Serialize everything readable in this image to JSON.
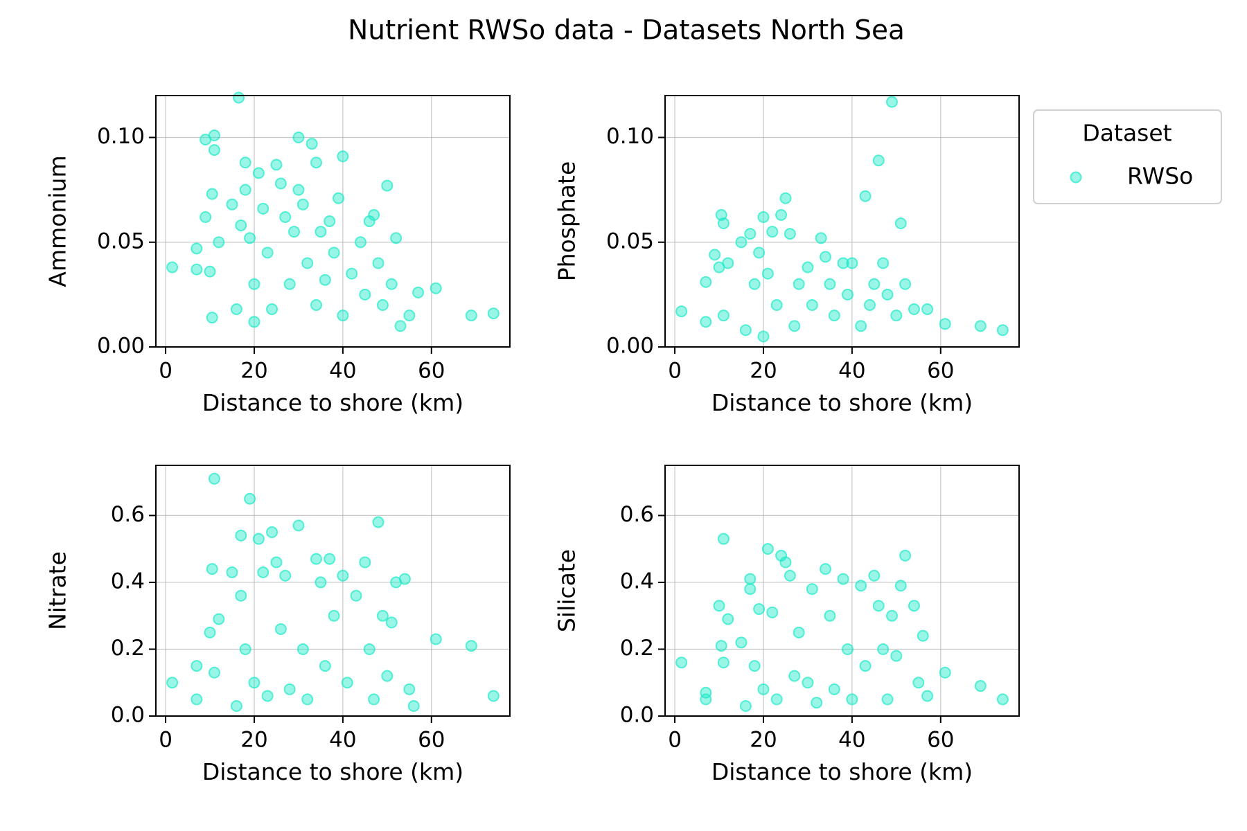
{
  "title": "Nutrient RWSo data - Datasets North Sea",
  "legend": {
    "title": "Dataset"
  },
  "chart_data": [
    {
      "type": "scatter",
      "xlabel": "Distance to shore (km)",
      "ylabel": "Ammonium",
      "grid": true,
      "xlim": [
        -2.2,
        77.7
      ],
      "ylim": [
        0,
        0.12
      ],
      "xticks": [
        0,
        20,
        40,
        60
      ],
      "yticks": [
        {
          "value": 0,
          "label": "0.00"
        },
        {
          "value": 0.05,
          "label": "0.05"
        },
        {
          "value": 0.1,
          "label": "0.10"
        }
      ],
      "x": [
        1.5,
        7,
        7,
        9,
        9,
        10,
        10.5,
        10.5,
        11,
        11,
        12,
        15,
        16,
        16.5,
        17,
        18,
        18,
        19,
        20,
        20,
        21,
        22,
        23,
        24,
        25,
        26,
        27,
        28,
        29,
        30,
        30,
        31,
        32,
        33,
        34,
        34,
        35,
        36,
        37,
        38,
        39,
        40,
        40,
        42,
        44,
        45,
        46,
        47,
        48,
        49,
        50,
        51,
        52,
        53,
        55,
        57,
        61,
        69,
        74
      ],
      "series": [
        {
          "name": "RWSo",
          "color": "#1de9c8",
          "values": [
            0.038,
            0.047,
            0.037,
            0.062,
            0.099,
            0.036,
            0.073,
            0.014,
            0.101,
            0.094,
            0.05,
            0.068,
            0.018,
            0.119,
            0.058,
            0.088,
            0.075,
            0.052,
            0.03,
            0.012,
            0.083,
            0.066,
            0.045,
            0.018,
            0.087,
            0.078,
            0.062,
            0.03,
            0.055,
            0.075,
            0.1,
            0.068,
            0.04,
            0.097,
            0.088,
            0.02,
            0.055,
            0.032,
            0.06,
            0.045,
            0.071,
            0.091,
            0.015,
            0.035,
            0.05,
            0.025,
            0.06,
            0.063,
            0.04,
            0.02,
            0.077,
            0.03,
            0.052,
            0.01,
            0.015,
            0.026,
            0.028,
            0.015,
            0.016
          ]
        }
      ]
    },
    {
      "type": "scatter",
      "xlabel": "Distance to shore (km)",
      "ylabel": "Phosphate",
      "grid": true,
      "xlim": [
        -2.2,
        77.7
      ],
      "ylim": [
        0,
        0.12
      ],
      "xticks": [
        0,
        20,
        40,
        60
      ],
      "yticks": [
        {
          "value": 0,
          "label": "0.00"
        },
        {
          "value": 0.05,
          "label": "0.05"
        },
        {
          "value": 0.1,
          "label": "0.10"
        }
      ],
      "x": [
        1.5,
        7,
        7,
        9,
        10,
        10.5,
        11,
        11,
        12,
        15,
        16,
        17,
        18,
        19,
        20,
        20,
        21,
        22,
        23,
        24,
        25,
        26,
        27,
        28,
        30,
        31,
        33,
        34,
        35,
        36,
        38,
        39,
        40,
        42,
        43,
        44,
        45,
        46,
        47,
        48,
        49,
        50,
        51,
        52,
        54,
        57,
        61,
        69,
        74
      ],
      "series": [
        {
          "name": "RWSo",
          "color": "#1de9c8",
          "values": [
            0.017,
            0.012,
            0.031,
            0.044,
            0.038,
            0.063,
            0.059,
            0.015,
            0.04,
            0.05,
            0.008,
            0.054,
            0.03,
            0.045,
            0.062,
            0.005,
            0.035,
            0.055,
            0.02,
            0.063,
            0.071,
            0.054,
            0.01,
            0.03,
            0.038,
            0.02,
            0.052,
            0.043,
            0.03,
            0.015,
            0.04,
            0.025,
            0.04,
            0.01,
            0.072,
            0.02,
            0.03,
            0.089,
            0.04,
            0.025,
            0.117,
            0.015,
            0.059,
            0.03,
            0.018,
            0.018,
            0.011,
            0.01,
            0.008
          ]
        }
      ]
    },
    {
      "type": "scatter",
      "xlabel": "Distance to shore (km)",
      "ylabel": "Nitrate",
      "grid": true,
      "xlim": [
        -2.2,
        77.7
      ],
      "ylim": [
        0,
        0.75
      ],
      "xticks": [
        0,
        20,
        40,
        60
      ],
      "yticks": [
        {
          "value": 0,
          "label": "0.0"
        },
        {
          "value": 0.2,
          "label": "0.2"
        },
        {
          "value": 0.4,
          "label": "0.4"
        },
        {
          "value": 0.6,
          "label": "0.6"
        }
      ],
      "x": [
        1.5,
        7,
        7,
        10,
        10.5,
        11,
        11,
        12,
        15,
        16,
        17,
        17,
        18,
        19,
        20,
        21,
        22,
        23,
        24,
        25,
        26,
        27,
        28,
        30,
        31,
        32,
        34,
        35,
        36,
        37,
        38,
        40,
        41,
        43,
        45,
        46,
        47,
        48,
        49,
        50,
        51,
        52,
        54,
        55,
        56,
        61,
        69,
        74
      ],
      "series": [
        {
          "name": "RWSo",
          "color": "#1de9c8",
          "values": [
            0.1,
            0.15,
            0.05,
            0.25,
            0.44,
            0.71,
            0.13,
            0.29,
            0.43,
            0.03,
            0.54,
            0.36,
            0.2,
            0.65,
            0.1,
            0.53,
            0.43,
            0.06,
            0.55,
            0.46,
            0.26,
            0.42,
            0.08,
            0.57,
            0.2,
            0.05,
            0.47,
            0.4,
            0.15,
            0.47,
            0.3,
            0.42,
            0.1,
            0.36,
            0.46,
            0.2,
            0.05,
            0.58,
            0.3,
            0.12,
            0.28,
            0.4,
            0.41,
            0.08,
            0.03,
            0.23,
            0.21,
            0.06
          ]
        }
      ]
    },
    {
      "type": "scatter",
      "xlabel": "Distance to shore (km)",
      "ylabel": "Silicate",
      "grid": true,
      "xlim": [
        -2.2,
        77.7
      ],
      "ylim": [
        0,
        0.75
      ],
      "xticks": [
        0,
        20,
        40,
        60
      ],
      "yticks": [
        {
          "value": 0,
          "label": "0.0"
        },
        {
          "value": 0.2,
          "label": "0.2"
        },
        {
          "value": 0.4,
          "label": "0.4"
        },
        {
          "value": 0.6,
          "label": "0.6"
        }
      ],
      "x": [
        1.5,
        7,
        7,
        10,
        10.5,
        11,
        11,
        12,
        15,
        16,
        17,
        17,
        18,
        19,
        20,
        21,
        22,
        23,
        24,
        25,
        26,
        27,
        28,
        30,
        31,
        32,
        34,
        35,
        36,
        38,
        39,
        40,
        42,
        43,
        45,
        46,
        47,
        48,
        49,
        50,
        51,
        52,
        54,
        55,
        56,
        57,
        61,
        69,
        74
      ],
      "series": [
        {
          "name": "RWSo",
          "color": "#1de9c8",
          "values": [
            0.16,
            0.07,
            0.05,
            0.33,
            0.21,
            0.53,
            0.16,
            0.29,
            0.22,
            0.03,
            0.41,
            0.38,
            0.15,
            0.32,
            0.08,
            0.5,
            0.31,
            0.05,
            0.48,
            0.46,
            0.42,
            0.12,
            0.25,
            0.1,
            0.38,
            0.04,
            0.44,
            0.3,
            0.08,
            0.41,
            0.2,
            0.05,
            0.39,
            0.15,
            0.42,
            0.33,
            0.2,
            0.05,
            0.3,
            0.18,
            0.39,
            0.48,
            0.33,
            0.1,
            0.24,
            0.06,
            0.13,
            0.09,
            0.05
          ]
        }
      ]
    }
  ]
}
